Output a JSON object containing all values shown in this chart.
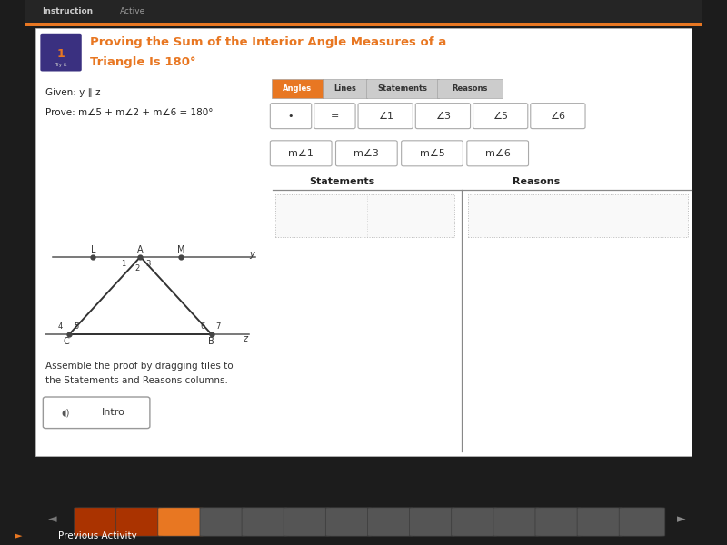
{
  "title_line1": "Proving the Sum of the Interior Angle Measures of a",
  "title_line2": "Triangle Is 180°",
  "title_color": "#e87722",
  "bg_color": "#f0f0f0",
  "header_bg": "#2a2a2a",
  "content_bg": "#ffffff",
  "given_text": "Given: y ∥ z",
  "prove_text": "Prove: m∠5 + m∠2 + m∠6 = 180°",
  "tab_labels": [
    "Angles",
    "Lines",
    "Statements",
    "Reasons"
  ],
  "tab_active": 0,
  "tab_active_color": "#e87722",
  "tab_inactive_color": "#cccccc",
  "tile_row1": [
    "•",
    "=",
    "∠1",
    "∠3",
    "∠5",
    "∠6"
  ],
  "tile_row2": [
    "m∠1",
    "m∠3",
    "m∠5",
    "m∠6"
  ],
  "col_statements": "Statements",
  "col_reasons": "Reasons",
  "instruction_text": "Assemble the proof by dragging tiles to\nthe Statements and Reasons columns.",
  "intro_btn": "Intro",
  "nav_bar_color": "#333333",
  "prev_activity": "Previous Activity",
  "instruction_label": "Instruction",
  "active_label": "Active",
  "monitor_bg": "#1c1c1c",
  "dark_side_color": "#2a2a2a"
}
